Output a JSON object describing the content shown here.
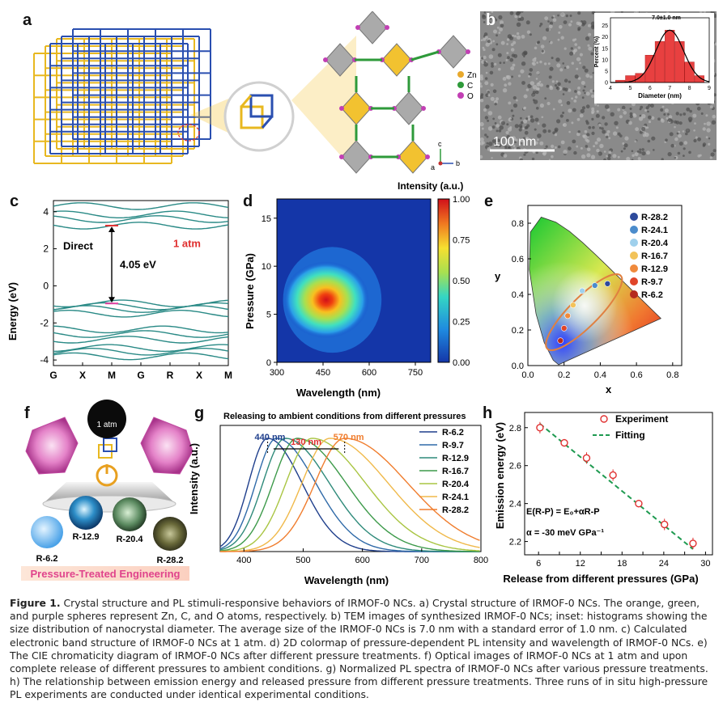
{
  "panels": {
    "a": {
      "label": "a",
      "legend": [
        {
          "sym": "Zn",
          "color": "#e8a92c"
        },
        {
          "sym": "C",
          "color": "#2e9a3a"
        },
        {
          "sym": "O",
          "color": "#c23fb4"
        }
      ],
      "axes": {
        "c": "c",
        "b": "b",
        "a": "a"
      }
    },
    "b": {
      "label": "b",
      "scale_text": "100 nm",
      "inset_title": "7.0±1.0 nm",
      "inset_xlabel": "Diameter (nm)",
      "inset_ylabel": "Percent (%)"
    },
    "c": {
      "label": "c",
      "ylabel": "Energy (eV)",
      "direct_label": "Direct",
      "gap_label": "4.05 eV",
      "pressure_label": "1 atm"
    },
    "d": {
      "label": "d",
      "xlabel": "Wavelength (nm)",
      "ylabel": "Pressure (GPa)",
      "cbar_title": "Intensity (a.u.)"
    },
    "e": {
      "label": "e",
      "xlabel": "x",
      "ylabel": "y"
    },
    "f": {
      "label": "f",
      "center": "1 atm",
      "samples": [
        "R-6.2",
        "R-12.9",
        "R-20.4",
        "R-28.2"
      ],
      "banner": "Pressure-Treated Engineering"
    },
    "g": {
      "label": "g",
      "title": "Releasing to ambient conditions from different pressures",
      "xlabel": "Wavelength (nm)",
      "ylabel": "Intensity (a.u.)",
      "ann_440": "440 nm",
      "ann_130": "130 nm",
      "ann_570": "570 nm"
    },
    "h": {
      "label": "h",
      "xlabel": "Release from different pressures (GPa)",
      "ylabel": "Emission energy (eV)",
      "legend_exp": "Experiment",
      "legend_fit": "Fitting",
      "eq1": "E(R-P) = E₀+αR-P",
      "eq2": "α = -30 meV GPa⁻¹"
    }
  },
  "caption": {
    "fig": "Figure 1.",
    "text": "Crystal structure and PL stimuli-responsive behaviors of IRMOF-0 NCs. a) Crystal structure of IRMOF-0 NCs. The orange, green, and purple spheres represent Zn, C, and O atoms, respectively. b) TEM images of synthesized IRMOF-0 NCs; inset: histograms showing the size distribution of nanocrystal diameter. The average size of the IRMOF-0 NCs is 7.0 nm with a standard error of 1.0 nm. c) Calculated electronic band structure of IRMOF-0 NCs at 1 atm. d) 2D colormap of pressure-dependent PL intensity and wavelength of IRMOF-0 NCs. e) The CIE chromaticity diagram of IRMOF-0 NCs after different pressure treatments. f) Optical images of IRMOF-0 NCs at 1 atm and upon complete release of different pressures to ambient conditions. g) Normalized PL spectra of IRMOF-0 NCs after various pressure treatments. h) The relationship between emission energy and released pressure from different pressure treatments. Three runs of in situ high-pressure PL experiments are conducted under identical experimental conditions."
  },
  "chart_data": [
    {
      "id": "b-inset",
      "type": "bar",
      "title": "7.0±1.0 nm",
      "xlabel": "Diameter (nm)",
      "ylabel": "Percent (%)",
      "x": [
        4.5,
        5,
        5.5,
        6,
        6.5,
        7,
        7.5,
        8,
        8.5
      ],
      "values": [
        1,
        3,
        4,
        12,
        18,
        23,
        18,
        9,
        3
      ],
      "xticks": [
        4,
        5,
        6,
        7,
        8,
        9
      ],
      "yticks": [
        0,
        5,
        10,
        15,
        20,
        25
      ],
      "xlim": [
        4,
        9
      ],
      "ylim": [
        0,
        27
      ]
    },
    {
      "id": "c-bands",
      "type": "line",
      "ylabel": "Energy (eV)",
      "xticks": [
        "G",
        "X",
        "M",
        "G",
        "R",
        "X",
        "M"
      ],
      "yticks": [
        -4,
        -2,
        0,
        2,
        4
      ],
      "ylim": [
        -4.3,
        4.6
      ],
      "bands": [
        4.3,
        3.85,
        3.6,
        3.25,
        -0.95,
        -1.1,
        -1.25,
        -1.5,
        -2.35,
        -2.6,
        -2.9,
        -3.35,
        -3.55,
        -3.8
      ]
    },
    {
      "id": "d-colormap",
      "type": "heatmap",
      "xlabel": "Wavelength (nm)",
      "ylabel": "Pressure (GPa)",
      "xticks": [
        300,
        450,
        600,
        750
      ],
      "yticks": [
        0,
        5,
        10,
        15
      ],
      "xlim": [
        300,
        800
      ],
      "ylim": [
        0,
        17
      ],
      "peak": {
        "wavelength": 460,
        "pressure": 6.5
      },
      "cbar_ticks": [
        0.0,
        0.25,
        0.5,
        0.75,
        1.0
      ]
    },
    {
      "id": "e-cie",
      "type": "scatter",
      "xlabel": "x",
      "ylabel": "y",
      "xticks": [
        0.0,
        0.2,
        0.4,
        0.6,
        0.8
      ],
      "yticks": [
        0.0,
        0.2,
        0.4,
        0.6,
        0.8
      ],
      "series": [
        {
          "name": "R-28.2",
          "x": 0.44,
          "y": 0.46,
          "color": "#2d4a9c"
        },
        {
          "name": "R-24.1",
          "x": 0.37,
          "y": 0.45,
          "color": "#4b8ccc"
        },
        {
          "name": "R-20.4",
          "x": 0.3,
          "y": 0.42,
          "color": "#9fd0ec"
        },
        {
          "name": "R-16.7",
          "x": 0.25,
          "y": 0.34,
          "color": "#f2c35a"
        },
        {
          "name": "R-12.9",
          "x": 0.22,
          "y": 0.28,
          "color": "#f08a3c"
        },
        {
          "name": "R-9.7",
          "x": 0.2,
          "y": 0.21,
          "color": "#e0452a"
        },
        {
          "name": "R-6.2",
          "x": 0.18,
          "y": 0.14,
          "color": "#b52a1e"
        }
      ]
    },
    {
      "id": "g-spectra",
      "type": "line",
      "title": "Releasing to ambient conditions from different pressures",
      "xlabel": "Wavelength (nm)",
      "ylabel": "Intensity (a.u.)",
      "xticks": [
        400,
        500,
        600,
        700,
        800
      ],
      "xlim": [
        360,
        800
      ],
      "series": [
        {
          "name": "R-6.2",
          "peak": 440,
          "color": "#1f3f8c"
        },
        {
          "name": "R-9.7",
          "peak": 455,
          "color": "#2f6aa8"
        },
        {
          "name": "R-12.9",
          "peak": 470,
          "color": "#2e8a7a"
        },
        {
          "name": "R-16.7",
          "peak": 490,
          "color": "#3d9a4a"
        },
        {
          "name": "R-20.4",
          "peak": 515,
          "color": "#a9c542"
        },
        {
          "name": "R-24.1",
          "peak": 545,
          "color": "#f0b94a"
        },
        {
          "name": "R-28.2",
          "peak": 570,
          "color": "#f07d2e"
        }
      ]
    },
    {
      "id": "h-energy",
      "type": "scatter",
      "xlabel": "Release from different pressures (GPa)",
      "ylabel": "Emission energy (eV)",
      "xticks": [
        6,
        9,
        12,
        15,
        18,
        21,
        24,
        27,
        30
      ],
      "xtick_labels": [
        6,
        12,
        18,
        24,
        30
      ],
      "yticks": [
        2.2,
        2.4,
        2.6,
        2.8
      ],
      "xlim": [
        4,
        31
      ],
      "ylim": [
        2.13,
        2.88
      ],
      "x": [
        6.2,
        9.7,
        12.9,
        16.7,
        20.4,
        24.1,
        28.2
      ],
      "y": [
        2.8,
        2.72,
        2.64,
        2.55,
        2.4,
        2.29,
        2.19
      ],
      "err": [
        0.03,
        0.02,
        0.03,
        0.03,
        0.02,
        0.03,
        0.03
      ],
      "fit": {
        "x": [
          6.2,
          28.2
        ],
        "y": [
          2.82,
          2.16
        ]
      }
    }
  ]
}
